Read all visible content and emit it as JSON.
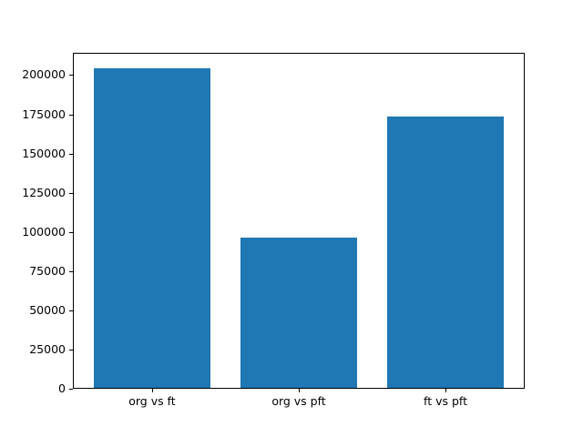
{
  "chart_data": {
    "type": "bar",
    "title": "",
    "xlabel": "",
    "ylabel": "",
    "categories": [
      "org vs ft",
      "org vs pft",
      "ft vs pft"
    ],
    "values": [
      204000,
      95500,
      173000
    ],
    "yticks": [
      0,
      25000,
      50000,
      75000,
      100000,
      125000,
      150000,
      175000,
      200000
    ],
    "ylim": [
      0,
      214200
    ],
    "xlim": [
      -0.54,
      2.54
    ],
    "bar_width": 0.8,
    "bar_color": "#1f77b4",
    "spine_color": "#000000",
    "tick_color": "#000000",
    "background_color": "#ffffff",
    "grid": false,
    "legend": null
  }
}
